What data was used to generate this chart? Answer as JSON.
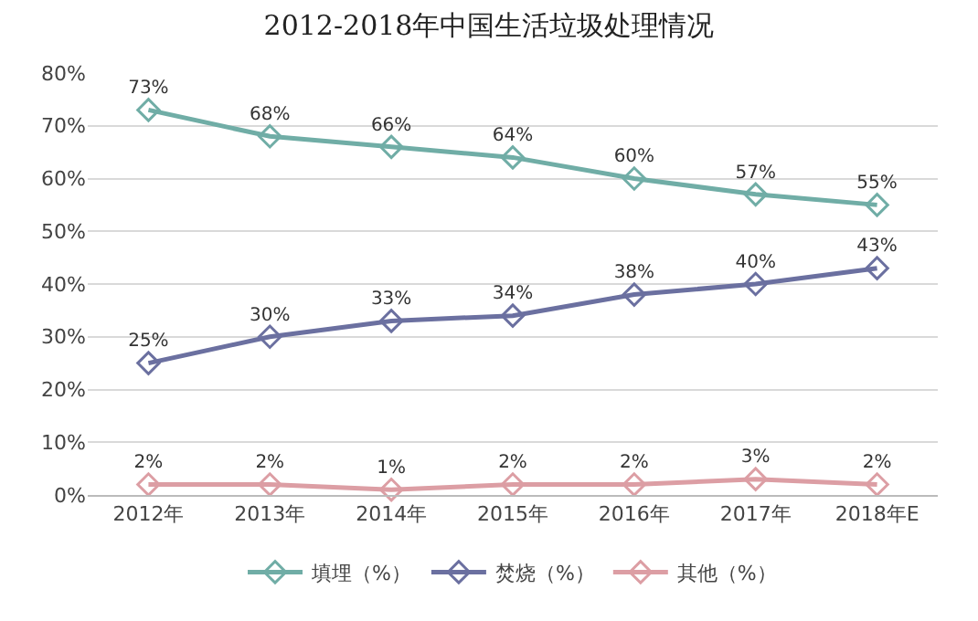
{
  "chart_data": {
    "type": "line",
    "title": "2012-2018年中国生活垃圾处理情况",
    "categories": [
      "2012年",
      "2013年",
      "2014年",
      "2015年",
      "2016年",
      "2017年",
      "2018年E"
    ],
    "series": [
      {
        "name": "填埋（%）",
        "color": "#70ada6",
        "values": [
          73,
          68,
          66,
          64,
          60,
          57,
          55
        ],
        "value_labels": [
          "73%",
          "68%",
          "66%",
          "64%",
          "60%",
          "57%",
          "55%"
        ]
      },
      {
        "name": "焚烧（%）",
        "color": "#6b70a0",
        "values": [
          25,
          30,
          33,
          34,
          38,
          40,
          43
        ],
        "value_labels": [
          "25%",
          "30%",
          "33%",
          "34%",
          "38%",
          "40%",
          "43%"
        ]
      },
      {
        "name": "其他（%）",
        "color": "#dc9ea4",
        "values": [
          2,
          2,
          1,
          2,
          2,
          3,
          2
        ],
        "value_labels": [
          "2%",
          "2%",
          "1%",
          "2%",
          "2%",
          "3%",
          "2%"
        ]
      }
    ],
    "ylim": [
      0,
      80
    ],
    "yticks": [
      {
        "value": 0,
        "label": "0%"
      },
      {
        "value": 10,
        "label": "10%"
      },
      {
        "value": 20,
        "label": "20%"
      },
      {
        "value": 30,
        "label": "30%"
      },
      {
        "value": 40,
        "label": "40%"
      },
      {
        "value": 50,
        "label": "50%"
      },
      {
        "value": 60,
        "label": "60%"
      },
      {
        "value": 70,
        "label": "70%"
      },
      {
        "value": 80,
        "label": "80%"
      }
    ],
    "grid": "y",
    "legend": "bottom",
    "marker": "diamond",
    "line_style": "solid"
  }
}
